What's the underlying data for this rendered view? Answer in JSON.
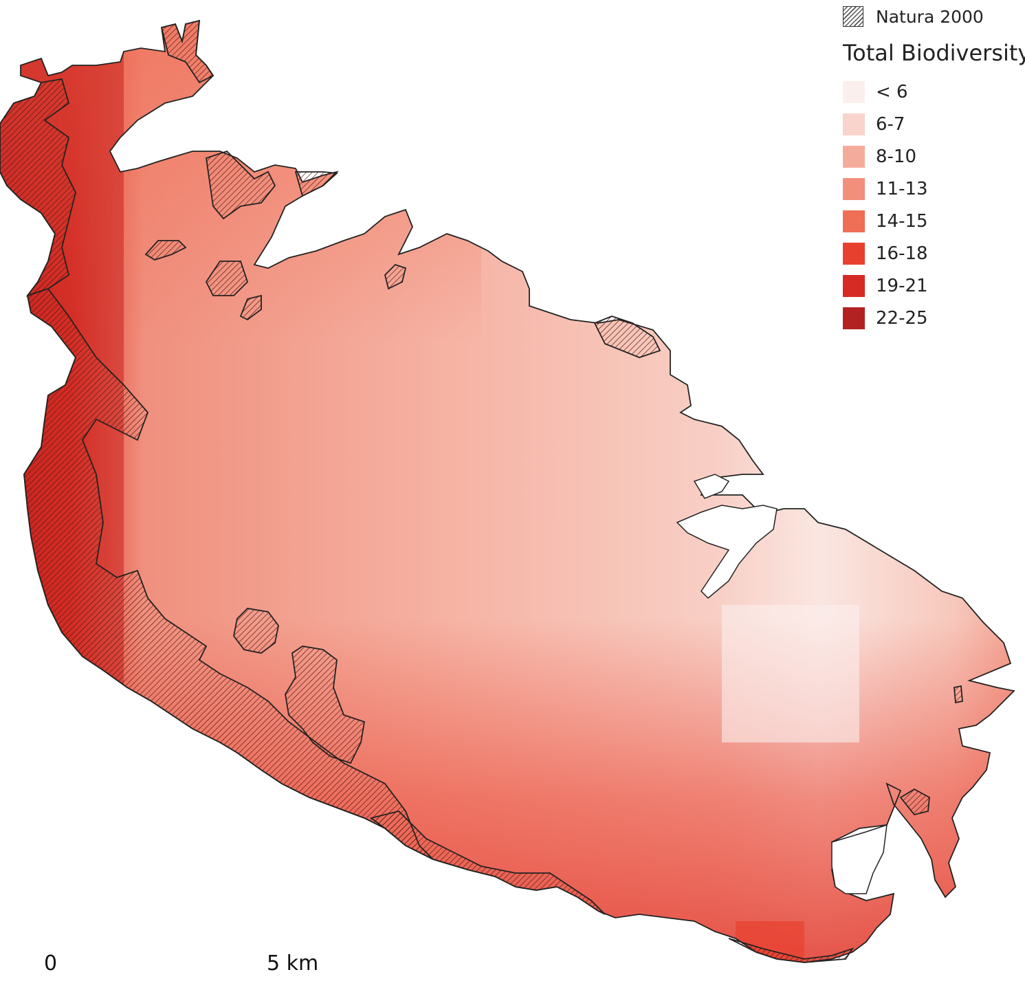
{
  "legend": {
    "natura_label": "Natura 2000",
    "title": "Total Biodiversity",
    "classes": [
      {
        "label": "< 6",
        "color": "#fbefed"
      },
      {
        "label": "6-7",
        "color": "#f8d4cc"
      },
      {
        "label": "8-10",
        "color": "#f5ab9b"
      },
      {
        "label": "11-13",
        "color": "#f28e7c"
      },
      {
        "label": "14-15",
        "color": "#ef6e56"
      },
      {
        "label": "16-18",
        "color": "#e8402f"
      },
      {
        "label": "19-21",
        "color": "#d62a24"
      },
      {
        "label": "22-25",
        "color": "#b22222"
      }
    ]
  },
  "scale_bar": {
    "start_label": "0",
    "end_label": "5 km"
  }
}
